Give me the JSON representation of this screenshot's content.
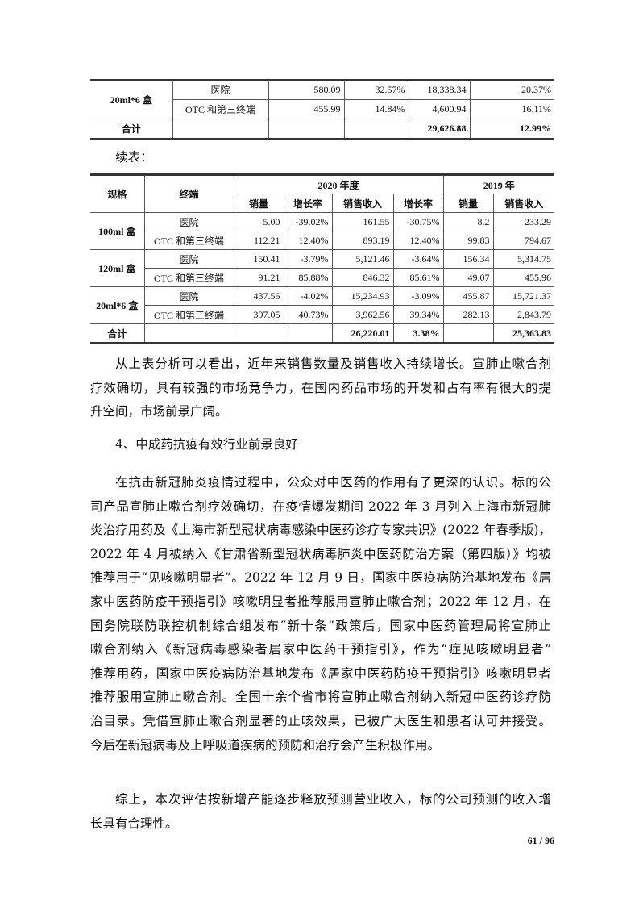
{
  "table1": {
    "rows": [
      {
        "spec": "20ml*6 盒",
        "terminal": "医院",
        "v": [
          "580.09",
          "32.57%",
          "18,338.34",
          "20.37%"
        ]
      },
      {
        "spec": "",
        "terminal": "OTC 和第三终端",
        "v": [
          "455.99",
          "14.84%",
          "4,600.94",
          "16.11%"
        ]
      }
    ],
    "total": {
      "label": "合计",
      "v": [
        "",
        "",
        "29,626.88",
        "12.99%"
      ]
    }
  },
  "continued_label": "续表：",
  "table2": {
    "headers": {
      "spec": "规格",
      "terminal": "终端",
      "year1": "2020 年度",
      "year2": "2019 年",
      "cols": [
        "销量",
        "增长率",
        "销售收入",
        "增长率",
        "销量",
        "销售收入"
      ]
    },
    "rows": [
      {
        "spec": "100ml 盒",
        "terminal": "医院",
        "v": [
          "5.00",
          "-39.02%",
          "161.55",
          "-30.75%",
          "8.2",
          "233.29"
        ]
      },
      {
        "terminal": "OTC 和第三终端",
        "v": [
          "112.21",
          "12.40%",
          "893.19",
          "12.40%",
          "99.83",
          "794.67"
        ]
      },
      {
        "spec": "120ml 盒",
        "terminal": "医院",
        "v": [
          "150.41",
          "-3.79%",
          "5,121.46",
          "-3.64%",
          "156.34",
          "5,314.75"
        ]
      },
      {
        "terminal": "OTC 和第三终端",
        "v": [
          "91.21",
          "85.88%",
          "846.32",
          "85.61%",
          "49.07",
          "455.96"
        ]
      },
      {
        "spec": "20ml*6 盒",
        "terminal": "医院",
        "v": [
          "437.56",
          "-4.02%",
          "15,234.93",
          "-3.09%",
          "455.87",
          "15,721.37"
        ]
      },
      {
        "terminal": "OTC 和第三终端",
        "v": [
          "397.05",
          "40.73%",
          "3,962.56",
          "39.34%",
          "282.13",
          "2,843.79"
        ]
      }
    ],
    "total": {
      "label": "合计",
      "v": [
        "",
        "",
        "26,220.01",
        "3.38%",
        "",
        "25,363.83"
      ]
    }
  },
  "paragraphs": {
    "p1": [
      "从上表分析可以看出，近年来销售数量及销售收入持续增长。宣肺止嗽合剂",
      "疗效确切，具有较强的市场竞争力，在国内药品市场的开发和占有率有很大的提",
      "升空间，市场前景广阔。"
    ],
    "heading": "4、中成药抗疫有效行业前景良好",
    "p2": [
      "在抗击新冠肺炎疫情过程中，公众对中医药的作用有了更深的认识。标的公",
      "司产品宣肺止嗽合剂疗效确切，在疫情爆发期间 2022 年 3 月列入上海市新冠肺",
      "炎治疗用药及《上海市新型冠状病毒感染中医药诊疗专家共识》(2022 年春季版)，",
      "2022 年 4 月被纳入《甘肃省新型冠状病毒肺炎中医药防治方案（第四版）》均被",
      "推荐用于“见咳嗽明显者”。2022 年 12 月 9 日，国家中医疫病防治基地发布《居",
      "家中医药防疫干预指引》咳嗽明显者推荐服用宣肺止嗽合剂；2022 年 12 月，在",
      "国务院联防联控机制综合组发布“新十条”政策后，国家中医药管理局将宣肺止",
      "嗽合剂纳入《新冠病毒感染者居家中医药干预指引》，作为“症见咳嗽明显者”",
      "推荐用药，国家中医疫病防治基地发布《居家中医药防疫干预指引》咳嗽明显者",
      "推荐服用宣肺止嗽合剂。全国十余个省市将宣肺止嗽合剂纳入新冠中医药诊疗防",
      "治目录。凭借宣肺止嗽合剂显著的止咳效果，已被广大医生和患者认可并接受。",
      "今后在新冠病毒及上呼吸道疾病的预防和治疗会产生积极作用。"
    ],
    "p3": [
      "综上，本次评估按新增产能逐步释放预测营业收入，标的公司预测的收入增",
      "长具有合理性。"
    ]
  },
  "page_number": "61 / 96"
}
